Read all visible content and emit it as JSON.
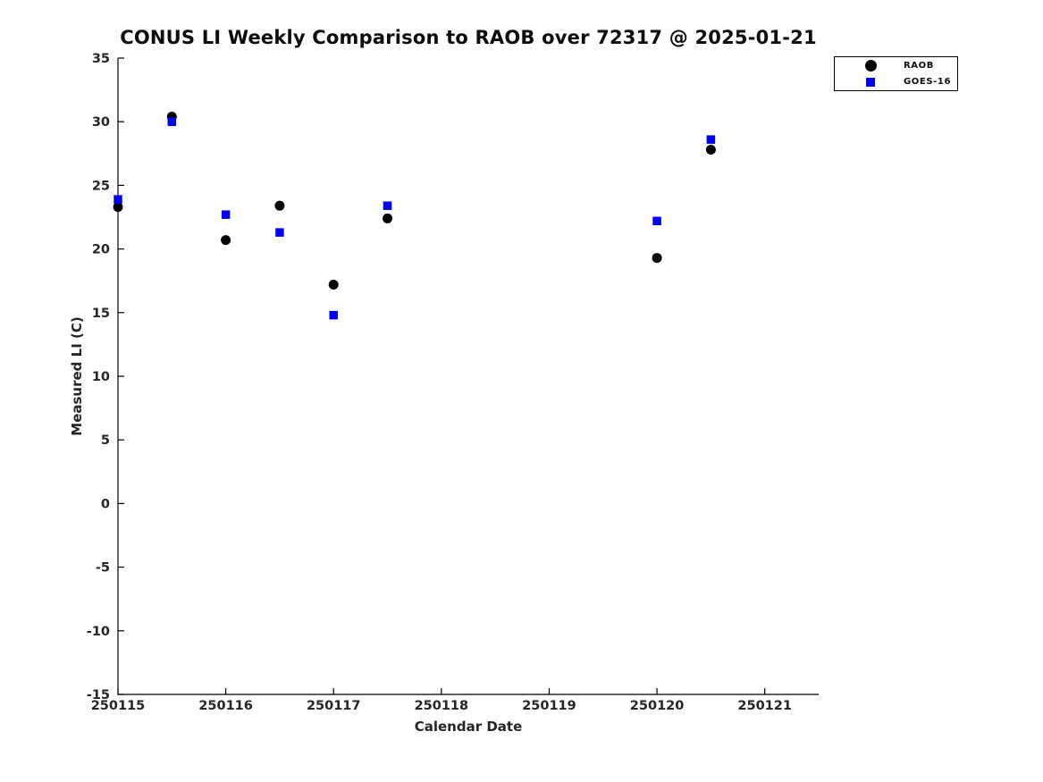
{
  "chart_data": {
    "type": "scatter",
    "title": "CONUS LI Weekly Comparison to RAOB over 72317 @ 2025-01-21",
    "xlabel": "Calendar Date",
    "ylabel": "Measured LI (C)",
    "xlim": [
      250115,
      250121.5
    ],
    "ylim": [
      -15,
      35
    ],
    "x_tick_values": [
      250115,
      250116,
      250117,
      250118,
      250119,
      250120,
      250121
    ],
    "x_tick_labels": [
      "250115",
      "250116",
      "250117",
      "250118",
      "250119",
      "250120",
      "250121"
    ],
    "y_ticks": [
      35,
      30,
      25,
      20,
      15,
      10,
      5,
      0,
      -5,
      -10,
      -15
    ],
    "grid": false,
    "legend_position": "top-right",
    "series": [
      {
        "name": "RAOB",
        "marker": "circle",
        "color": "#000000",
        "x": [
          250115,
          250115.5,
          250116,
          250116.5,
          250117,
          250117.5,
          250120,
          250120.5
        ],
        "y": [
          23.3,
          30.4,
          20.7,
          23.4,
          17.2,
          22.4,
          19.3,
          27.8
        ]
      },
      {
        "name": "GOES-16",
        "marker": "square",
        "color": "#0000ff",
        "x": [
          250115,
          250115.5,
          250116,
          250116.5,
          250117,
          250117.5,
          250120,
          250120.5
        ],
        "y": [
          23.9,
          30.0,
          22.7,
          21.3,
          14.8,
          23.4,
          22.2,
          28.6
        ]
      }
    ]
  }
}
